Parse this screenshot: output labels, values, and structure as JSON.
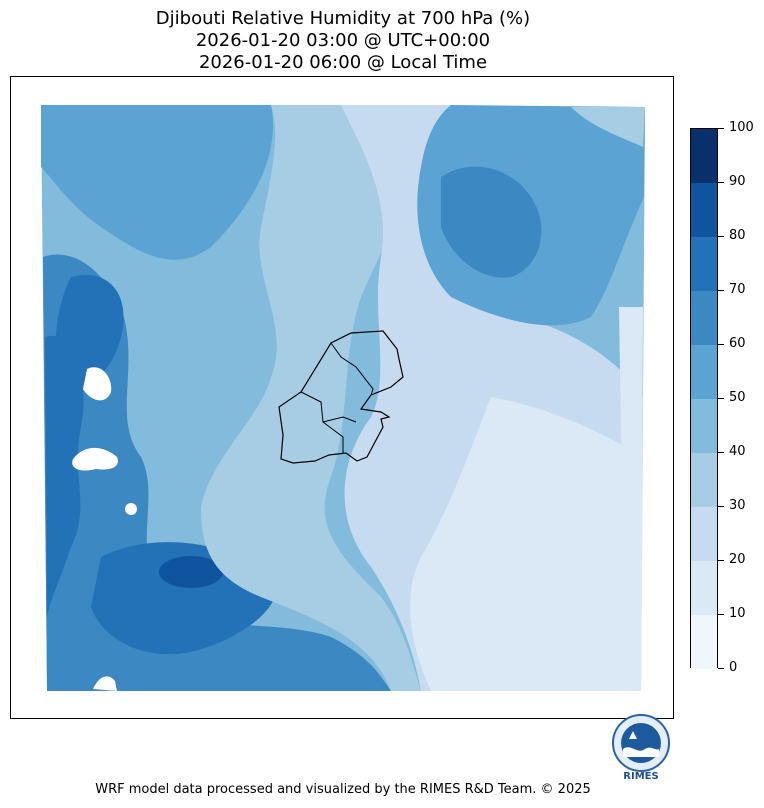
{
  "title": {
    "line1": "Djibouti Relative Humidity at 700 hPa (%)",
    "line2": "2026-01-20 03:00 @ UTC+00:00",
    "line3": "2026-01-20 06:00 @ Local Time"
  },
  "colorbar": {
    "ticks": [
      "0",
      "10",
      "20",
      "30",
      "40",
      "50",
      "60",
      "70",
      "80",
      "90",
      "100"
    ],
    "colors": [
      "#f1f6fd",
      "#dbe8f6",
      "#c6dbf0",
      "#a7cde5",
      "#83bbdc",
      "#5ba3d3",
      "#3c88c3",
      "#2371b6",
      "#0f549e",
      "#08306b"
    ]
  },
  "logo": {
    "text": "RIMES"
  },
  "footer": "WRF model data processed and visualized by the RIMES R&D Team. © 2025"
}
